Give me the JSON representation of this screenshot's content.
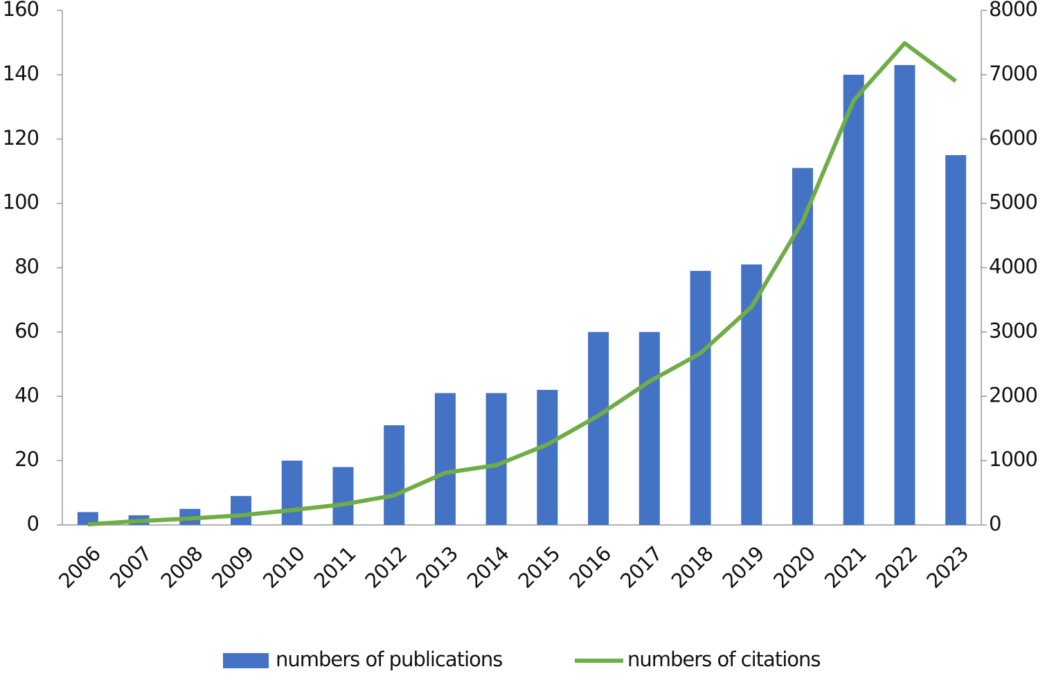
{
  "chart_data": {
    "type": "bar-line",
    "categories": [
      "2006",
      "2007",
      "2008",
      "2009",
      "2010",
      "2011",
      "2012",
      "2013",
      "2014",
      "2015",
      "2016",
      "2017",
      "2018",
      "2019",
      "2020",
      "2021",
      "2022",
      "2023"
    ],
    "series": [
      {
        "name": "numbers of publications",
        "color": "#4472c4",
        "type": "bar",
        "values": [
          4,
          3,
          5,
          9,
          20,
          18,
          31,
          41,
          41,
          42,
          60,
          60,
          79,
          81,
          111,
          140,
          143,
          115
        ]
      },
      {
        "name": "numbers of citations",
        "color": "#70ad47",
        "type": "line",
        "axis": "y2",
        "values": [
          10,
          60,
          100,
          150,
          230,
          320,
          460,
          810,
          930,
          1250,
          1700,
          2230,
          2670,
          3390,
          4720,
          6600,
          7490,
          6900
        ]
      }
    ],
    "ylim": [
      0,
      160
    ],
    "yticks": [
      0,
      20,
      40,
      60,
      80,
      100,
      120,
      140,
      160
    ],
    "y2lim": [
      0,
      8000
    ],
    "y2ticks": [
      0,
      1000,
      2000,
      3000,
      4000,
      5000,
      6000,
      7000,
      8000
    ],
    "legend": "bottom"
  }
}
